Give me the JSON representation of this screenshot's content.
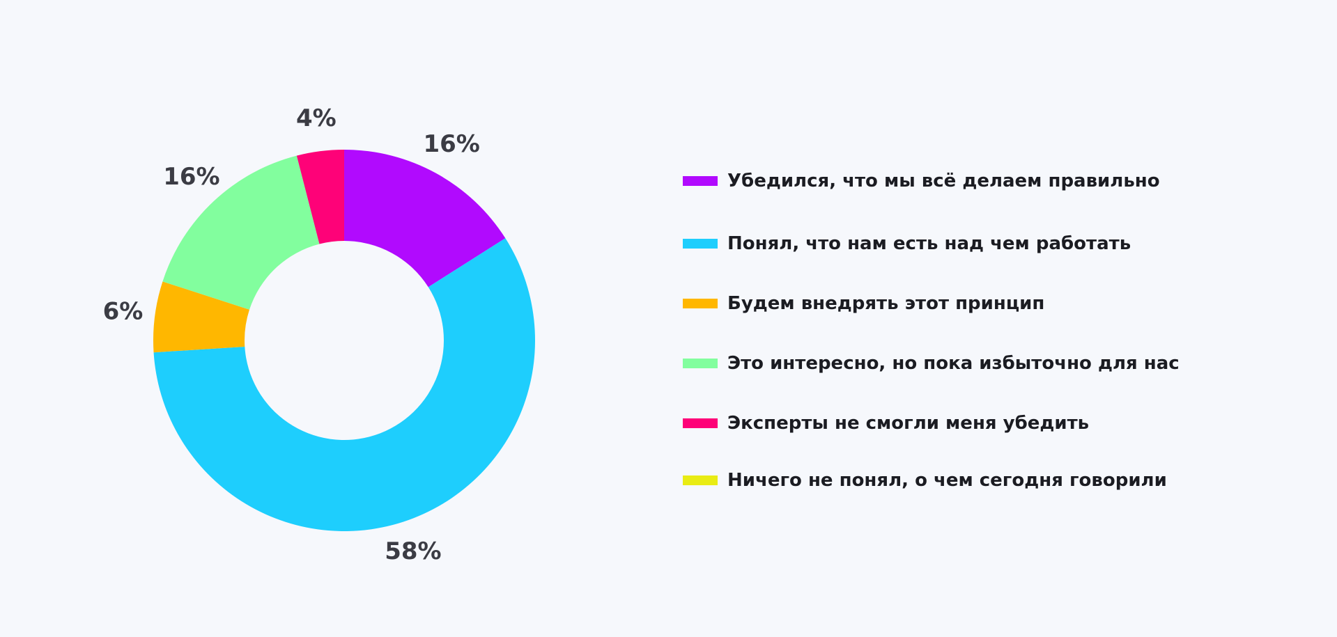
{
  "chart_data": {
    "type": "pie",
    "donut": true,
    "legend_placement": "right",
    "slices": [
      {
        "name": "Убедился, что мы всё делаем правильно",
        "value": 16,
        "label": "16%",
        "color": "#b10afe"
      },
      {
        "name": "Понял, что нам есть над чем работать",
        "value": 58,
        "label": "58%",
        "color": "#1ecefd"
      },
      {
        "name": "Будем внедрять этот принцип",
        "value": 6,
        "label": "6%",
        "color": "#ffb700"
      },
      {
        "name": "Это интересно, но пока избыточно для нас",
        "value": 16,
        "label": "16%",
        "color": "#82fe9e"
      },
      {
        "name": "Эксперты не смогли меня убедить",
        "value": 4,
        "label": "4%",
        "color": "#fe0278"
      },
      {
        "name": "Ничего не понял, о чем сегодня говорили",
        "value": 0,
        "label": "",
        "color": "#e9ec14"
      }
    ]
  }
}
